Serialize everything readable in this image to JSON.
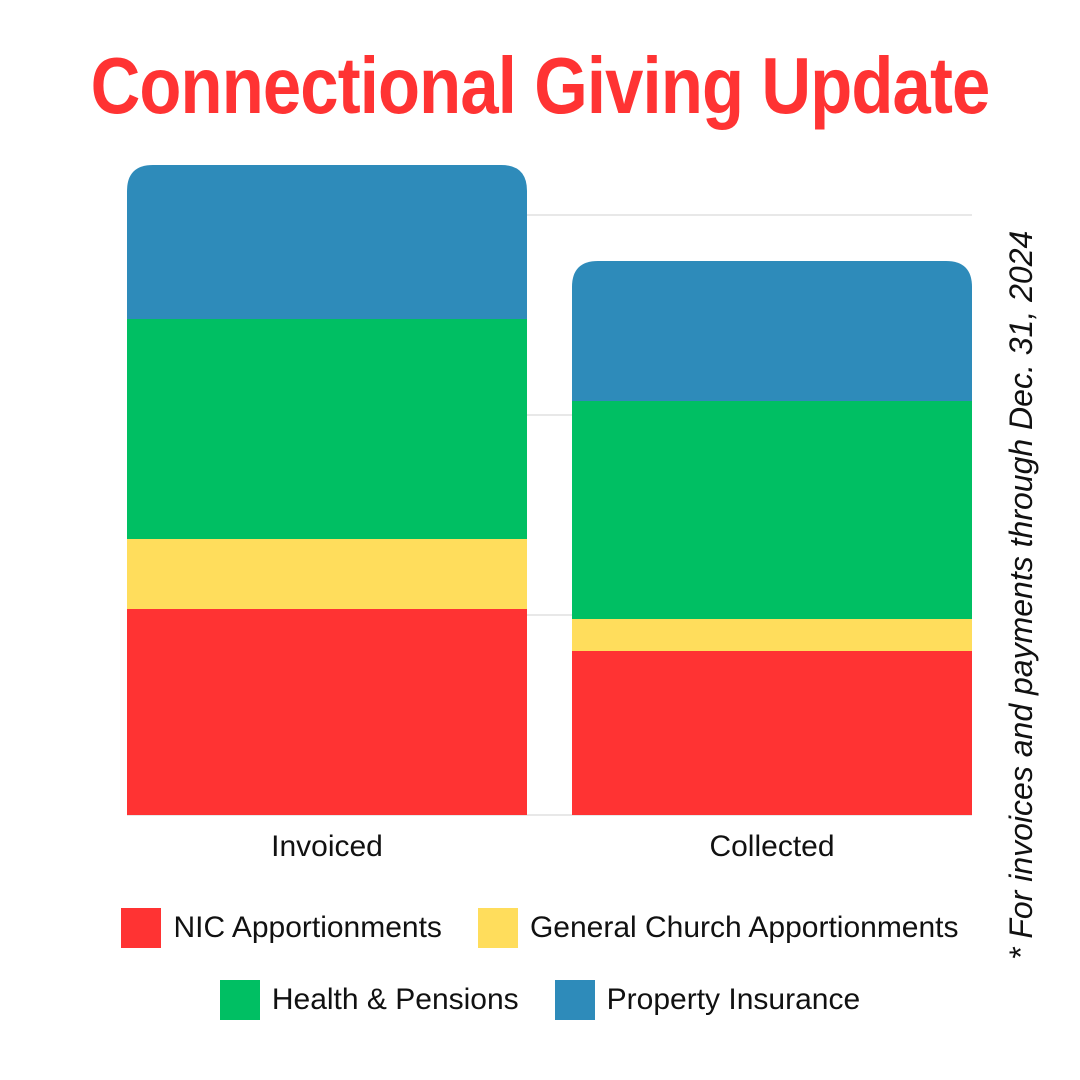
{
  "title": "Connectional Giving Update",
  "note": "* For invoices and payments through Dec. 31, 2024",
  "colors": {
    "title": "#ff3333",
    "nic": "#ff3333",
    "general_church": "#ffdd5c",
    "health_pensions": "#00bf63",
    "property_insurance": "#2e8bba",
    "grid": "#d0d0d0"
  },
  "chart_data": {
    "type": "bar",
    "stacked": true,
    "categories": [
      "Invoiced",
      "Collected"
    ],
    "series": [
      {
        "name": "NIC Apportionments",
        "values": [
          1.03,
          0.82
        ]
      },
      {
        "name": "General Church Apportionments",
        "values": [
          0.35,
          0.16
        ]
      },
      {
        "name": "Health & Pensions",
        "values": [
          1.1,
          1.09
        ]
      },
      {
        "name": "Property Insurance",
        "values": [
          0.77,
          0.7
        ]
      }
    ],
    "ylim": [
      0,
      3.25
    ],
    "grid": true,
    "gridlines": [
      1,
      2,
      3
    ],
    "axis_labels_shown": false,
    "legend_position": "bottom"
  },
  "legend": {
    "rows": [
      [
        {
          "label": "NIC Apportionments",
          "color": "#ff3333"
        },
        {
          "label": "General Church Apportionments",
          "color": "#ffdd5c"
        }
      ],
      [
        {
          "label": "Health & Pensions",
          "color": "#00bf63"
        },
        {
          "label": "Property Insurance",
          "color": "#2e8bba"
        }
      ]
    ]
  }
}
